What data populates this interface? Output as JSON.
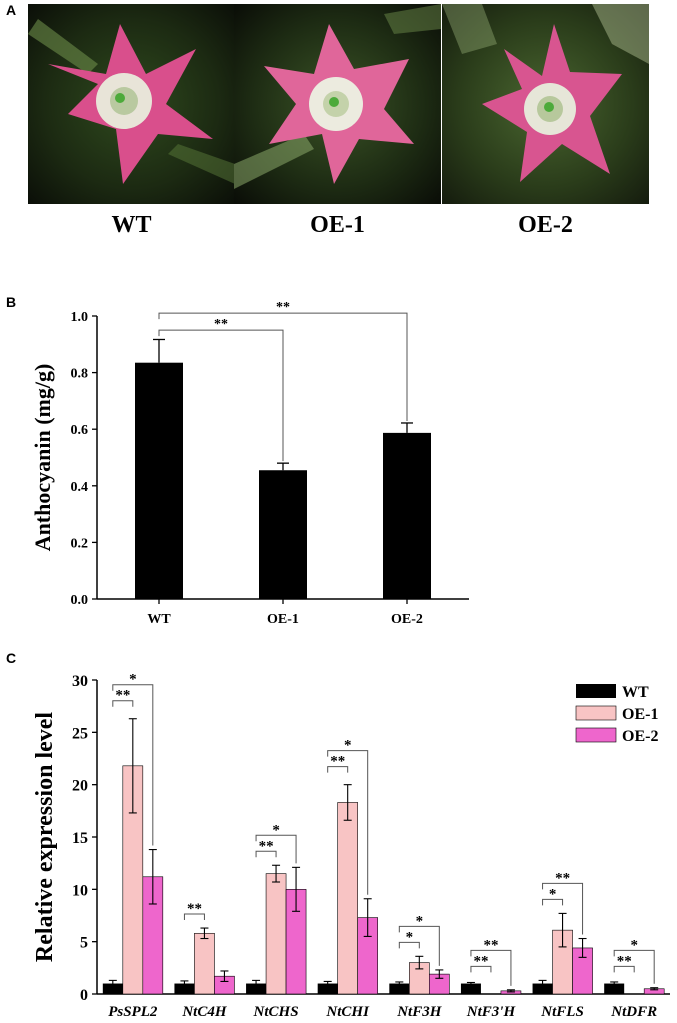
{
  "panel_a": {
    "letter": "A",
    "photos": [
      {
        "label": "WT",
        "petal_color": "#d94f8c"
      },
      {
        "label": "OE-1",
        "petal_color": "#e0669a"
      },
      {
        "label": "OE-2",
        "petal_color": "#d85590"
      }
    ]
  },
  "panel_b": {
    "letter": "B"
  },
  "panel_c": {
    "letter": "C"
  },
  "chart_data": [
    {
      "type": "bar",
      "title": "",
      "xlabel": "",
      "ylabel": "Anthocyanin (mg/g)",
      "ylim": [
        0,
        1.0
      ],
      "yticks": [
        "0.0",
        "0.2",
        "0.4",
        "0.6",
        "0.8",
        "1.0"
      ],
      "categories": [
        "WT",
        "OE-1",
        "OE-2"
      ],
      "values": [
        0.835,
        0.455,
        0.587
      ],
      "errors": [
        0.082,
        0.025,
        0.035
      ],
      "bar_color": "#000000",
      "significance": [
        {
          "from": "WT",
          "to": "OE-1",
          "label": "**"
        },
        {
          "from": "WT",
          "to": "OE-2",
          "label": "**"
        }
      ]
    },
    {
      "type": "bar",
      "title": "",
      "xlabel": "",
      "ylabel": "Relative expression level",
      "ylim": [
        0,
        30
      ],
      "yticks": [
        "0",
        "5",
        "10",
        "15",
        "20",
        "25",
        "30"
      ],
      "categories": [
        "PsSPL2",
        "NtC4H",
        "NtCHS",
        "NtCHI",
        "NtF3H",
        "NtF3'H",
        "NtFLS",
        "NtDFR"
      ],
      "legend_position": "top-right",
      "series": [
        {
          "name": "WT",
          "color": "#000000",
          "values": [
            1.0,
            1.0,
            1.0,
            1.0,
            1.0,
            1.0,
            1.0,
            1.0
          ],
          "errors": [
            0.3,
            0.25,
            0.3,
            0.2,
            0.15,
            0.1,
            0.3,
            0.15
          ]
        },
        {
          "name": "OE-1",
          "color": "#f8c4c4",
          "values": [
            21.8,
            5.8,
            11.5,
            18.3,
            3.0,
            0.0,
            6.1,
            0.0
          ],
          "errors": [
            4.5,
            0.5,
            0.8,
            1.7,
            0.6,
            0.0,
            1.6,
            0.0
          ]
        },
        {
          "name": "OE-2",
          "color": "#ee66cc",
          "values": [
            11.2,
            1.7,
            10.0,
            7.3,
            1.9,
            0.3,
            4.4,
            0.5
          ],
          "errors": [
            2.6,
            0.5,
            2.1,
            1.8,
            0.4,
            0.1,
            0.9,
            0.1
          ]
        }
      ],
      "significance": [
        {
          "category": "PsSPL2",
          "near": "**",
          "far": "*"
        },
        {
          "category": "NtC4H",
          "near": "**",
          "far": null
        },
        {
          "category": "NtCHS",
          "near": "**",
          "far": "*"
        },
        {
          "category": "NtCHI",
          "near": "**",
          "far": "*"
        },
        {
          "category": "NtF3H",
          "near": "*",
          "far": "*"
        },
        {
          "category": "NtF3'H",
          "near": "**",
          "far": "**"
        },
        {
          "category": "NtFLS",
          "near": "*",
          "far": "**"
        },
        {
          "category": "NtDFR",
          "near": "**",
          "far": "*"
        }
      ]
    }
  ]
}
